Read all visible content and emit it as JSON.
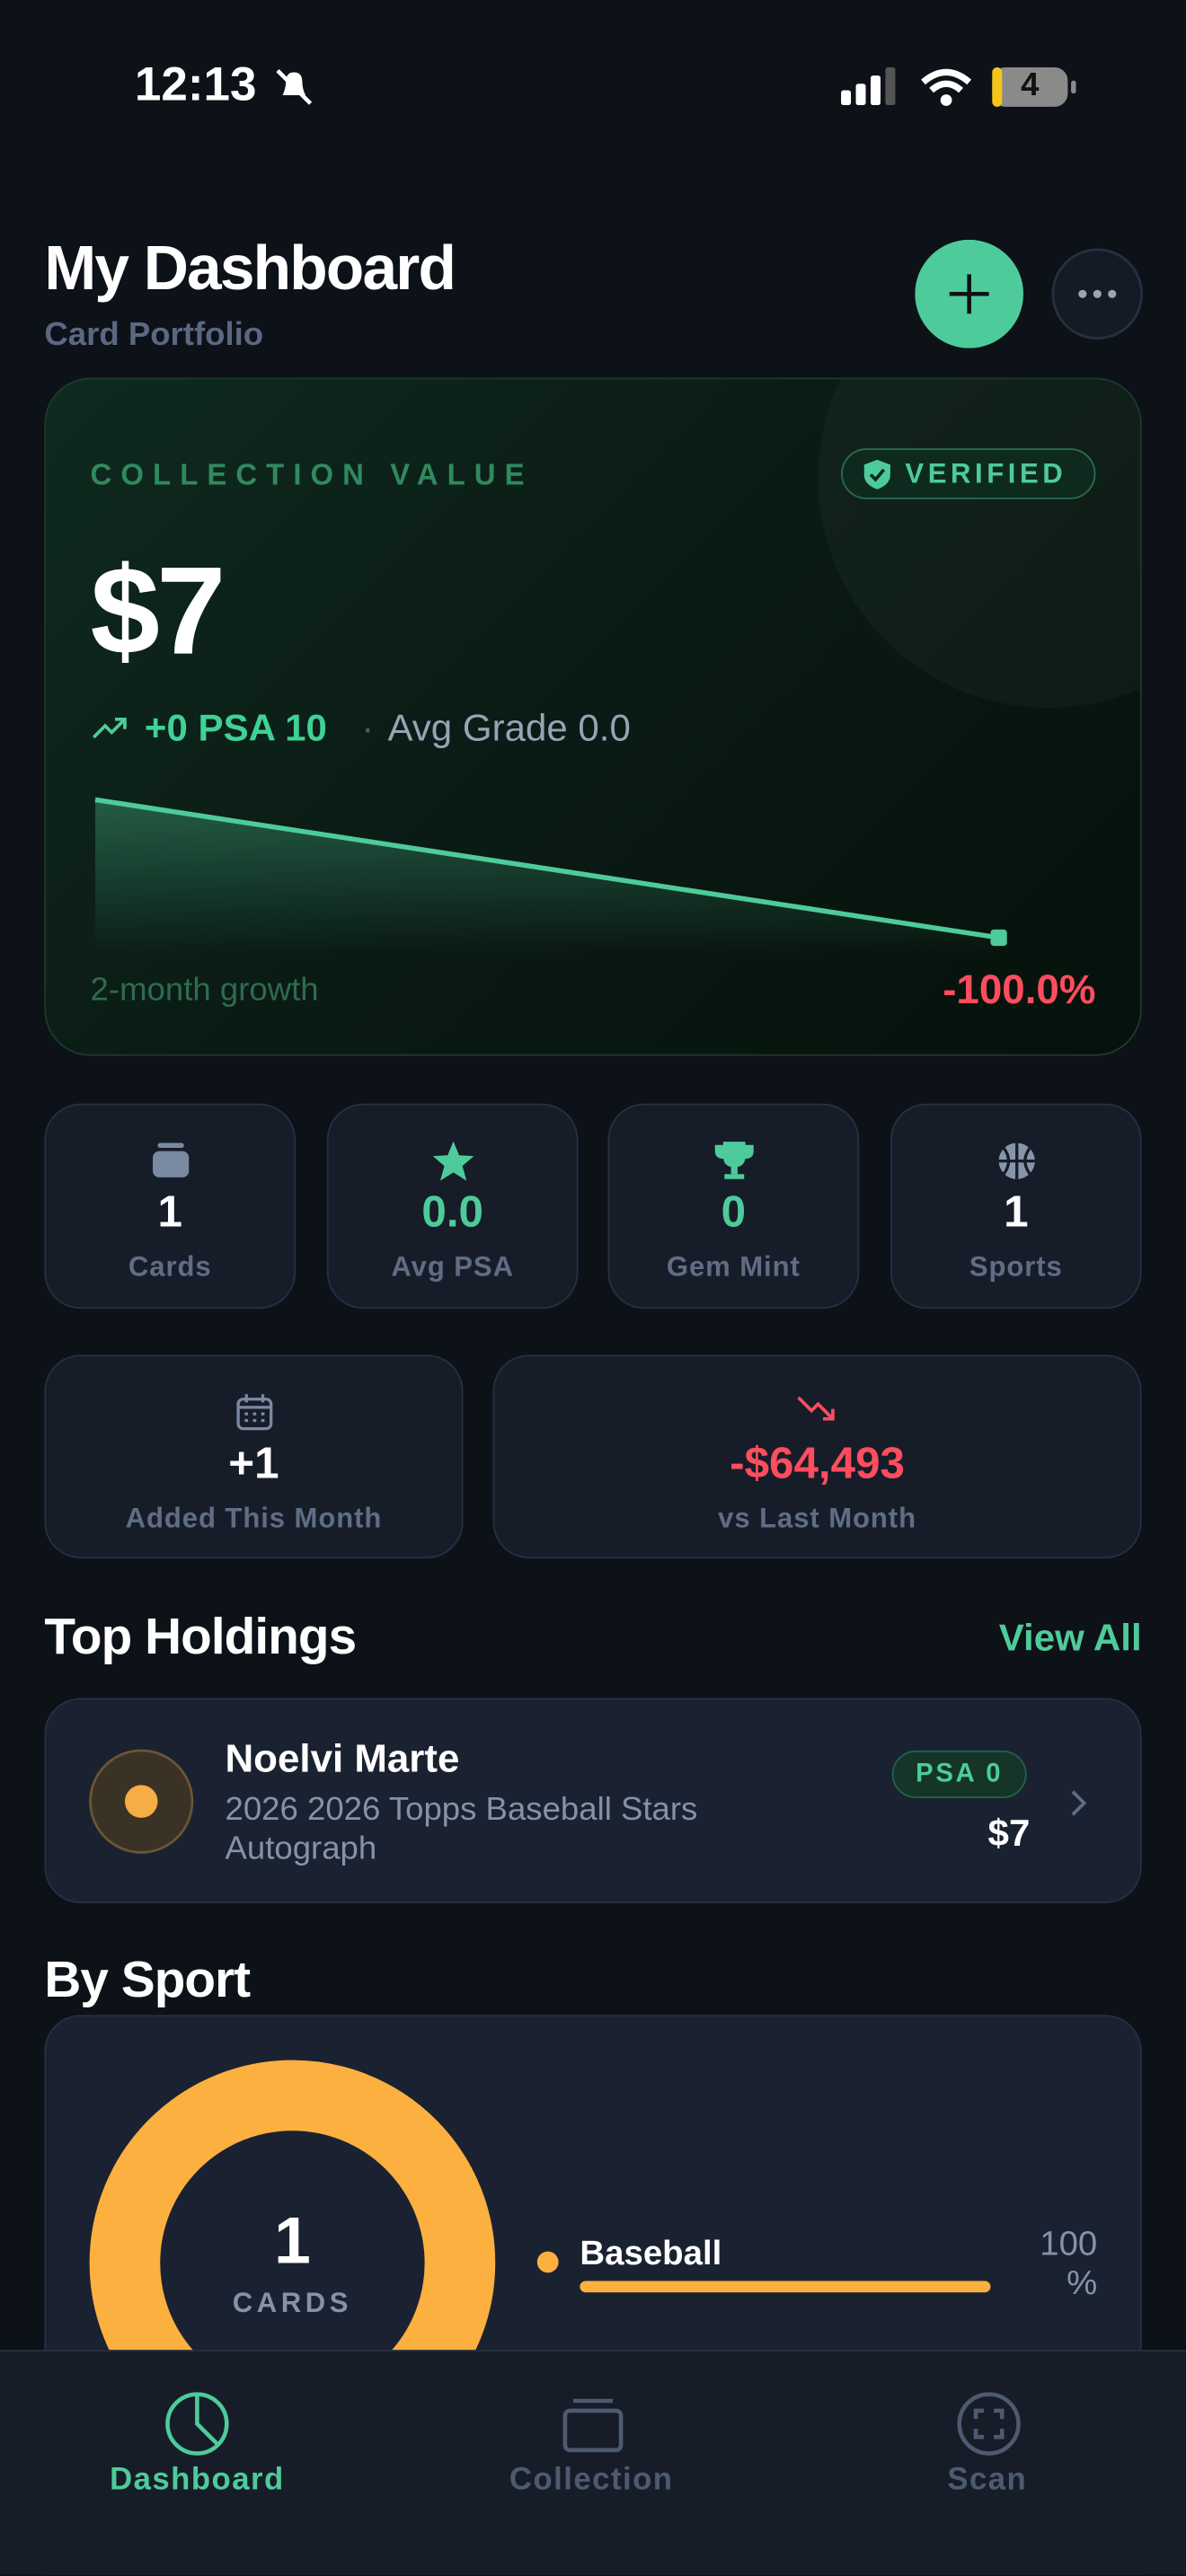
{
  "status_bar": {
    "time": "12:13",
    "battery": "4"
  },
  "header": {
    "title": "My Dashboard",
    "subtitle": "Card Portfolio"
  },
  "value_card": {
    "label": "COLLECTION VALUE",
    "badge": "VERIFIED",
    "value": "$7",
    "psa10": "+0 PSA 10",
    "avg_grade": "Avg Grade 0.0",
    "growth_label": "2-month growth",
    "growth": "-100.0%"
  },
  "stats": [
    {
      "value": "1",
      "label": "Cards"
    },
    {
      "value": "0.0",
      "label": "Avg PSA"
    },
    {
      "value": "0",
      "label": "Gem Mint"
    },
    {
      "value": "1",
      "label": "Sports"
    }
  ],
  "month_stats": [
    {
      "value": "+1",
      "label": "Added This Month"
    },
    {
      "value": "-$64,493",
      "label": "vs Last Month"
    }
  ],
  "top_holdings": {
    "title": "Top Holdings",
    "link": "View All",
    "items": [
      {
        "name": "Noelvi Marte",
        "set": "2026 2026 Topps Baseball Stars Autograph",
        "grade": "PSA 0",
        "value": "$7"
      }
    ]
  },
  "by_sport": {
    "title": "By Sport",
    "center_value": "1",
    "center_label": "CARDS",
    "items": [
      {
        "name": "Baseball",
        "percent": "100 %"
      }
    ]
  },
  "tab_bar": [
    "Dashboard",
    "Collection",
    "Scan"
  ]
}
